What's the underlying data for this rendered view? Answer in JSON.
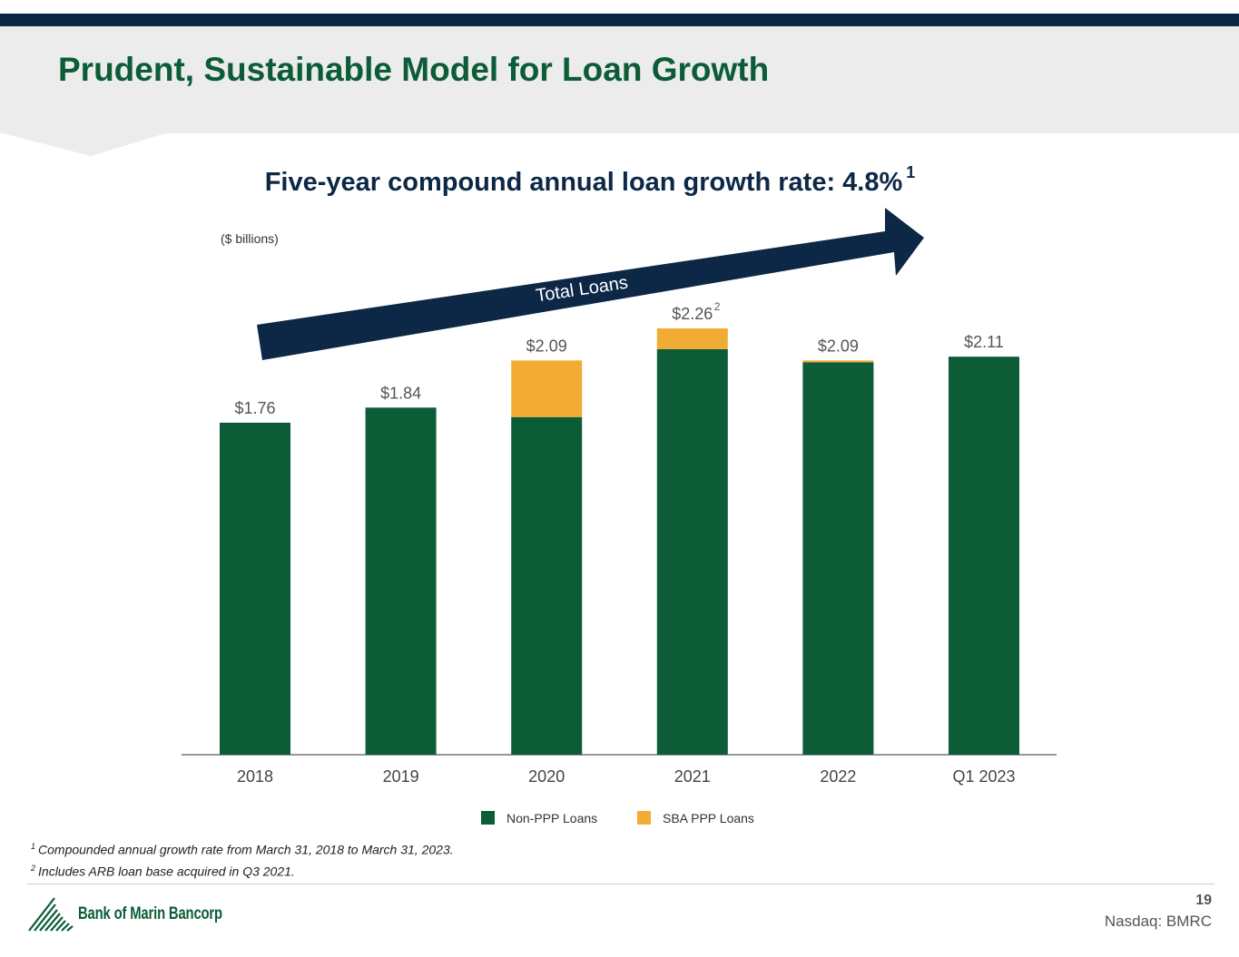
{
  "header": {
    "title": "Prudent, Sustainable Model for Loan Growth"
  },
  "subtitle": {
    "text": "Five-year compound annual loan growth rate: 4.8%",
    "footnote_ref": "1"
  },
  "units_label": "($ billions)",
  "arrow_label": "Total Loans",
  "chart_data": {
    "type": "bar",
    "stacked": true,
    "categories": [
      "2018",
      "2019",
      "2020",
      "2021",
      "2022",
      "Q1 2023"
    ],
    "series": [
      {
        "name": "Non-PPP Loans",
        "color": "#0b5c37",
        "values": [
          1.76,
          1.84,
          1.79,
          2.15,
          2.08,
          2.11
        ]
      },
      {
        "name": "SBA PPP Loans",
        "color": "#f2ac35",
        "values": [
          0.0,
          0.0,
          0.3,
          0.11,
          0.01,
          0.0
        ]
      }
    ],
    "totals": [
      "$1.76",
      "$1.84",
      "$2.09",
      "$2.26",
      "$2.09",
      "$2.11"
    ],
    "total_footnotes": [
      "",
      "",
      "",
      "2",
      "",
      ""
    ],
    "ylim": [
      0,
      2.26
    ],
    "legend_position": "bottom",
    "xlabel": "",
    "ylabel": ""
  },
  "footnotes": [
    {
      "marker": "1",
      "text": "Compounded annual growth rate from March 31, 2018 to March 31, 2023."
    },
    {
      "marker": "2",
      "text": "Includes ARB loan base acquired in Q3 2021."
    }
  ],
  "footer": {
    "company": "Bank of Marin Bancorp",
    "page_number": "19",
    "ticker": "Nasdaq: BMRC"
  },
  "colors": {
    "navy": "#0d2846",
    "green": "#0b5c37",
    "gold": "#f2ac35"
  }
}
